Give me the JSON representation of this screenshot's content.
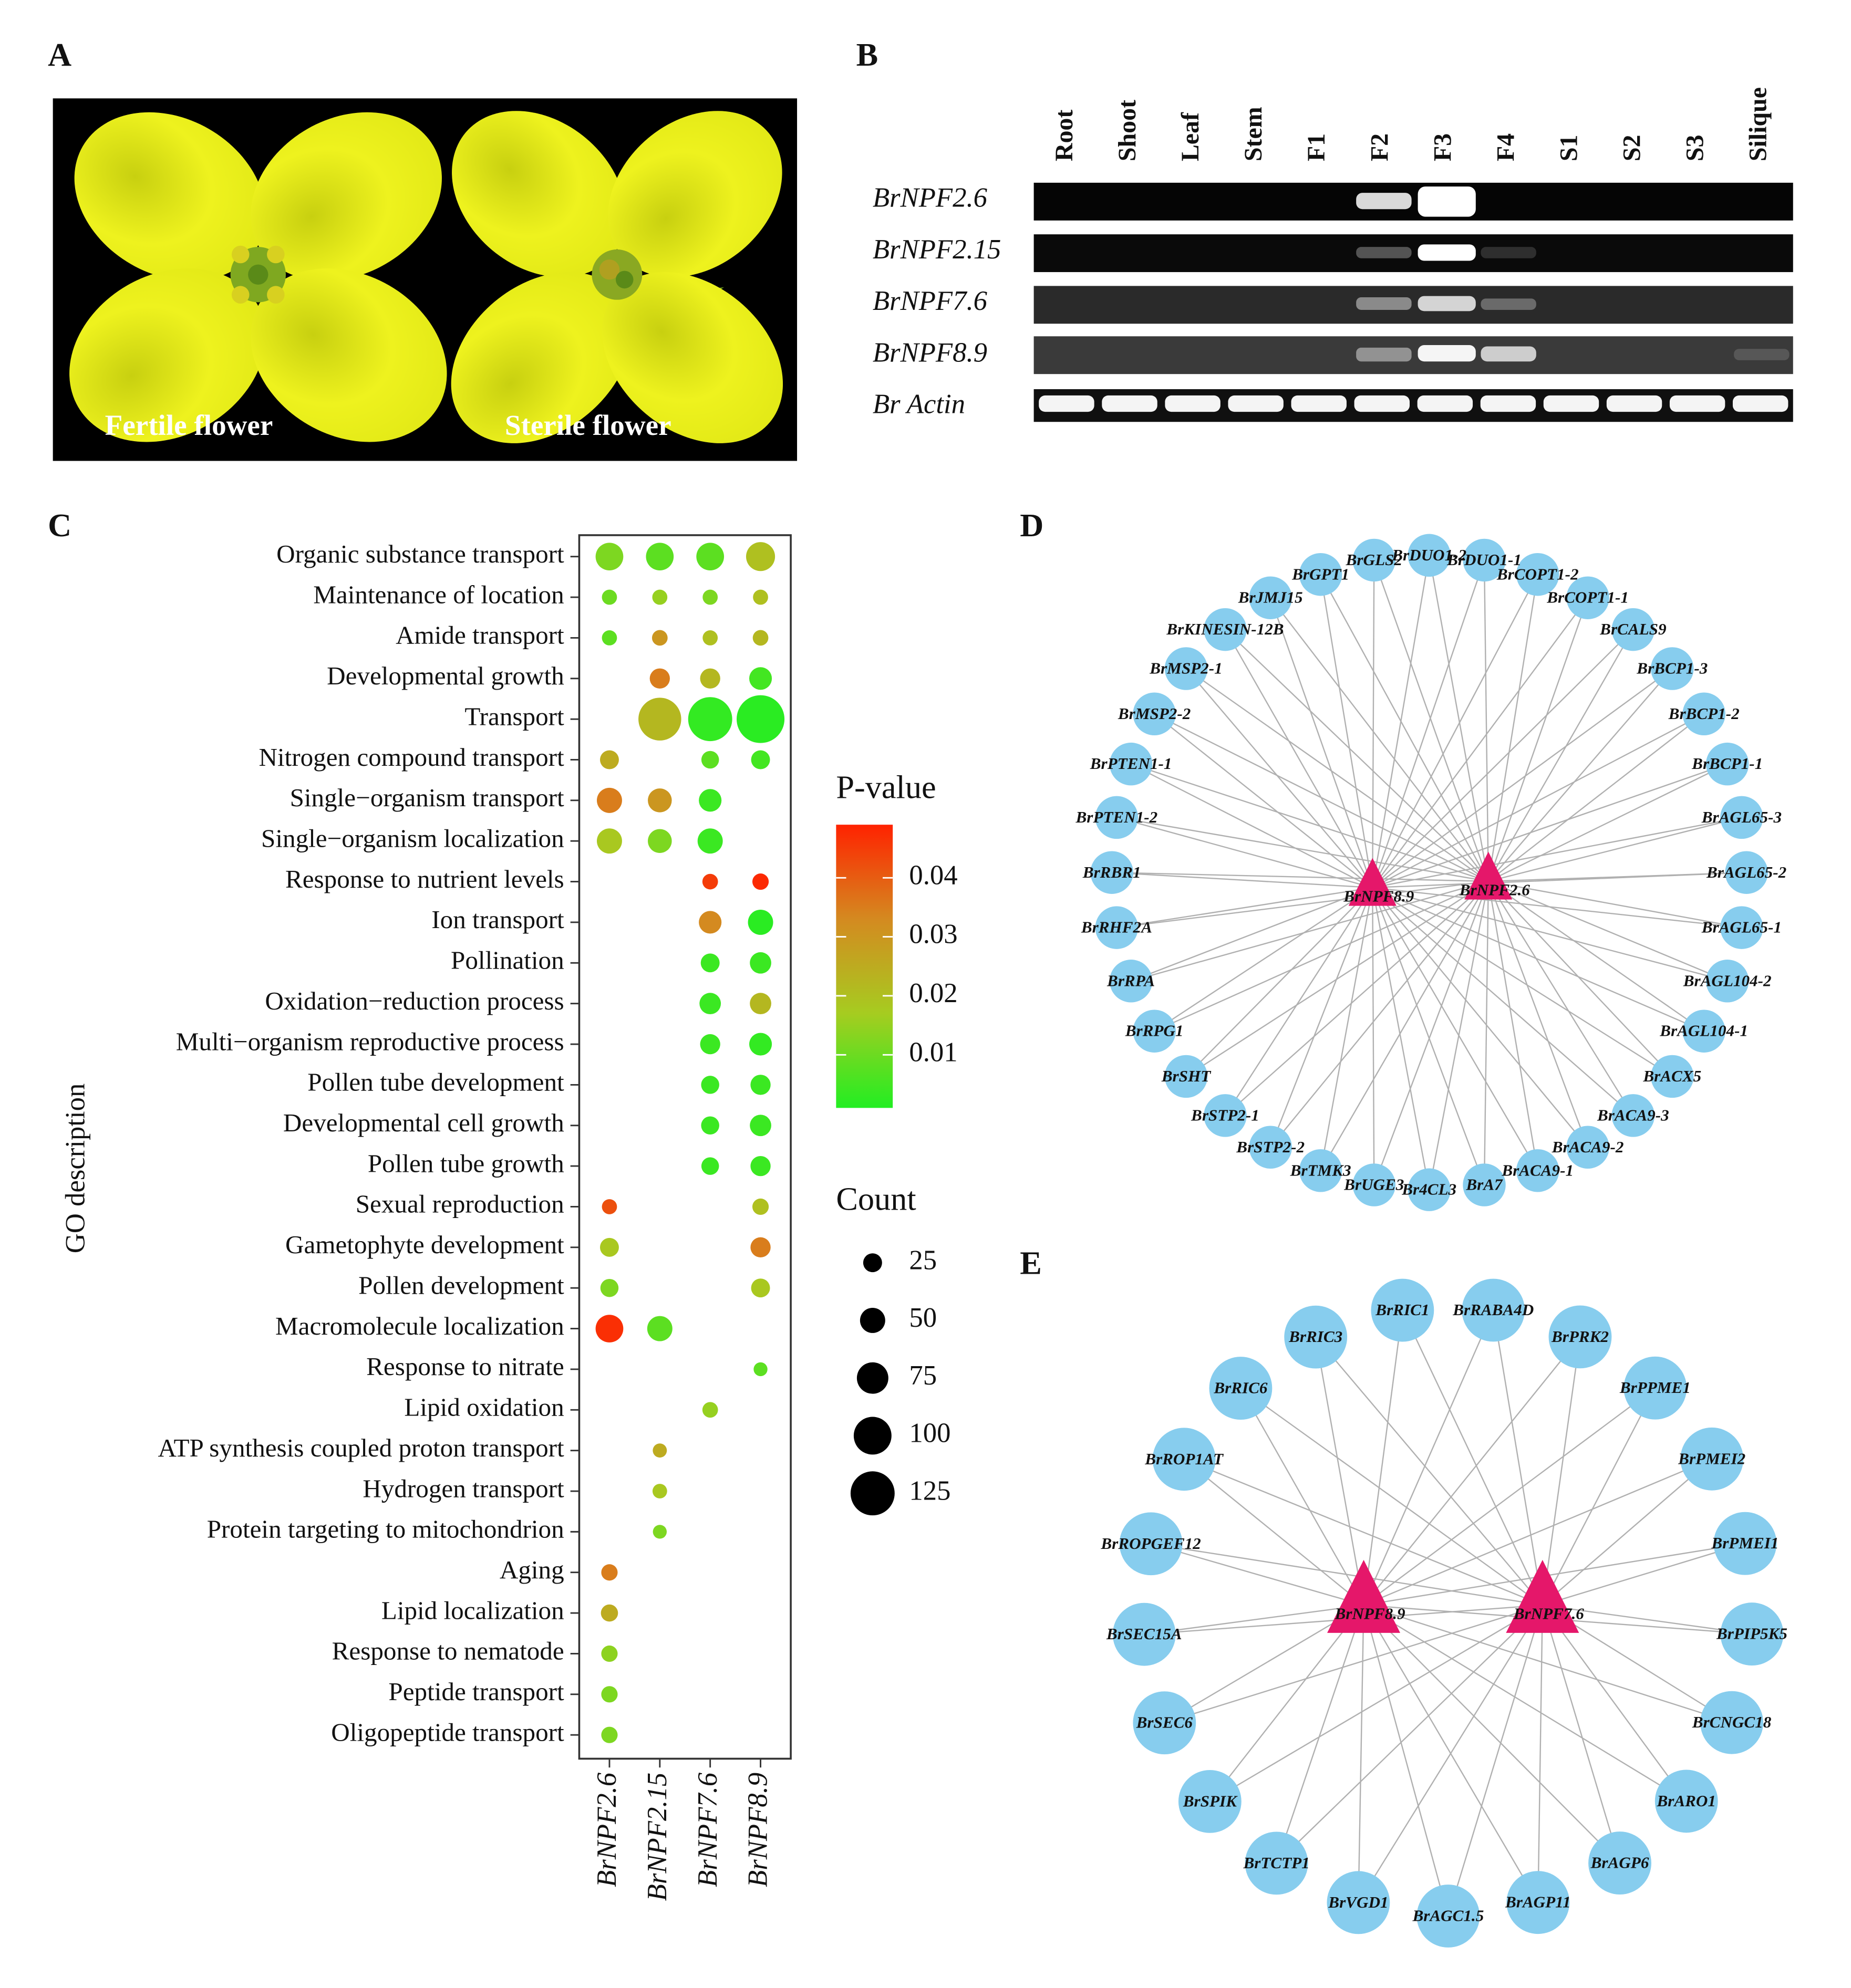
{
  "panel_labels": [
    "A",
    "B",
    "C",
    "D",
    "E"
  ],
  "panel_a": {
    "labels": [
      "Fertile flower",
      "Sterile flower"
    ]
  },
  "panel_b": {
    "lanes": [
      "Root",
      "Shoot",
      "Leaf",
      "Stem",
      "F1",
      "F2",
      "F3",
      "F4",
      "S1",
      "S2",
      "S3",
      "Silique"
    ],
    "genes": [
      "BrNPF2.6",
      "BrNPF2.15",
      "BrNPF7.6",
      "BrNPF8.9",
      "Br Actin"
    ]
  },
  "chart_data": {
    "type": "dotplot",
    "ylabel": "GO description",
    "categories": [
      "Organic substance transport",
      "Maintenance of location",
      "Amide transport",
      "Developmental growth",
      "Transport",
      "Nitrogen compound transport",
      "Single−organism transport",
      "Single−organism localization",
      "Response to nutrient levels",
      "Ion transport",
      "Pollination",
      "Oxidation−reduction process",
      "Multi−organism reproductive process",
      "Pollen tube development",
      "Developmental cell growth",
      "Pollen tube growth",
      "Sexual reproduction",
      "Gametophyte development",
      "Pollen development",
      "Macromolecule localization",
      "Response to nitrate",
      "Lipid oxidation",
      "ATP synthesis coupled proton transport",
      "Hydrogen transport",
      "Protein targeting to mitochondrion",
      "Aging",
      "Lipid localization",
      "Response to nematode",
      "Peptide transport",
      "Oligopeptide transport"
    ],
    "series": [
      {
        "name": "BrNPF2.6",
        "counts": [
          60,
          10,
          10,
          null,
          null,
          25,
          50,
          50,
          null,
          null,
          null,
          null,
          null,
          null,
          null,
          null,
          10,
          25,
          22,
          60,
          null,
          null,
          null,
          null,
          null,
          15,
          18,
          15,
          15,
          15
        ],
        "pvalues": [
          0.012,
          0.01,
          0.008,
          null,
          null,
          0.025,
          0.035,
          0.018,
          null,
          null,
          null,
          null,
          null,
          null,
          null,
          null,
          0.042,
          0.018,
          0.012,
          0.047,
          null,
          null,
          null,
          null,
          null,
          0.035,
          0.025,
          0.014,
          0.012,
          0.012
        ]
      },
      {
        "name": "BrNPF2.15",
        "counts": [
          60,
          10,
          12,
          30,
          120,
          null,
          45,
          45,
          null,
          null,
          null,
          null,
          null,
          null,
          null,
          null,
          null,
          null,
          null,
          50,
          null,
          null,
          6,
          8,
          5,
          null,
          null,
          null,
          null,
          null
        ],
        "pvalues": [
          0.008,
          0.015,
          0.03,
          0.035,
          0.022,
          null,
          0.03,
          0.012,
          null,
          null,
          null,
          null,
          null,
          null,
          null,
          null,
          null,
          null,
          null,
          0.008,
          null,
          null,
          0.025,
          0.018,
          0.012,
          null,
          null,
          null,
          null,
          null
        ]
      },
      {
        "name": "BrNPF7.6",
        "counts": [
          60,
          10,
          10,
          30,
          125,
          20,
          40,
          50,
          12,
          40,
          25,
          35,
          30,
          22,
          22,
          20,
          null,
          null,
          null,
          null,
          null,
          12,
          null,
          null,
          null,
          null,
          null,
          null,
          null,
          null
        ],
        "pvalues": [
          0.008,
          0.012,
          0.02,
          0.022,
          0.003,
          0.008,
          0.004,
          0.004,
          0.045,
          0.033,
          0.004,
          0.004,
          0.004,
          0.004,
          0.004,
          0.004,
          null,
          null,
          null,
          null,
          null,
          0.015,
          null,
          null,
          null,
          null,
          null,
          null,
          null,
          null
        ]
      },
      {
        "name": "BrNPF8.9",
        "counts": [
          65,
          10,
          12,
          40,
          140,
          25,
          null,
          null,
          15,
          50,
          35,
          35,
          40,
          30,
          35,
          30,
          15,
          30,
          25,
          null,
          5,
          null,
          null,
          null,
          null,
          null,
          null,
          null,
          null,
          null
        ],
        "pvalues": [
          0.02,
          0.02,
          0.022,
          0.005,
          0.002,
          0.005,
          null,
          null,
          0.048,
          0.002,
          0.004,
          0.022,
          0.003,
          0.004,
          0.004,
          0.004,
          0.02,
          0.035,
          0.018,
          null,
          0.008,
          null,
          null,
          null,
          null,
          null,
          null,
          null,
          null,
          null
        ]
      }
    ],
    "color_legend": {
      "title": "P-value",
      "lim": [
        0.001,
        0.049
      ],
      "ticks": [
        0.01,
        0.02,
        0.03,
        0.04
      ],
      "colors": [
        "#22ee22",
        "#a6cc20",
        "#d48a20",
        "#ff2200"
      ]
    },
    "size_legend": {
      "title": "Count",
      "values": [
        25,
        50,
        75,
        100,
        125
      ]
    }
  },
  "panel_d": {
    "nodes": [
      "BrDUO1-2",
      "BrDUO1-1",
      "BrCOPT1-2",
      "BrCOPT1-1",
      "BrCALS9",
      "BrBCP1-3",
      "BrBCP1-2",
      "BrBCP1-1",
      "BrAGL65-3",
      "BrAGL65-2",
      "BrAGL65-1",
      "BrAGL104-2",
      "BrAGL104-1",
      "BrACX5",
      "BrACA9-3",
      "BrACA9-2",
      "BrACA9-1",
      "BrA7",
      "Br4CL3",
      "BrUGE3",
      "BrTMK3",
      "BrSTP2-2",
      "BrSTP2-1",
      "BrSHT",
      "BrRPG1",
      "BrRPA",
      "BrRHF2A",
      "BrRBR1",
      "BrPTEN1-2",
      "BrPTEN1-1",
      "BrMSP2-2",
      "BrMSP2-1",
      "BrKINESIN-12B",
      "BrJMJ15",
      "BrGPT1",
      "BrGLS2"
    ],
    "hubs": [
      "BrNPF8.9",
      "BrNPF2.6"
    ]
  },
  "panel_e": {
    "nodes": [
      "BrRIC1",
      "BrRABA4D",
      "BrPRK2",
      "BrPPME1",
      "BrPMEI2",
      "BrPMEI1",
      "BrPIP5K5",
      "BrCNGC18",
      "BrARO1",
      "BrAGP6",
      "BrAGP11",
      "BrAGC1.5",
      "BrVGD1",
      "BrTCTP1",
      "BrSPIK",
      "BrSEC6",
      "BrSEC15A",
      "BrROPGEF12",
      "BrROP1AT",
      "BrRIC6",
      "BrRIC3"
    ],
    "hubs": [
      "BrNPF8.9",
      "BrNPF7.6"
    ]
  }
}
